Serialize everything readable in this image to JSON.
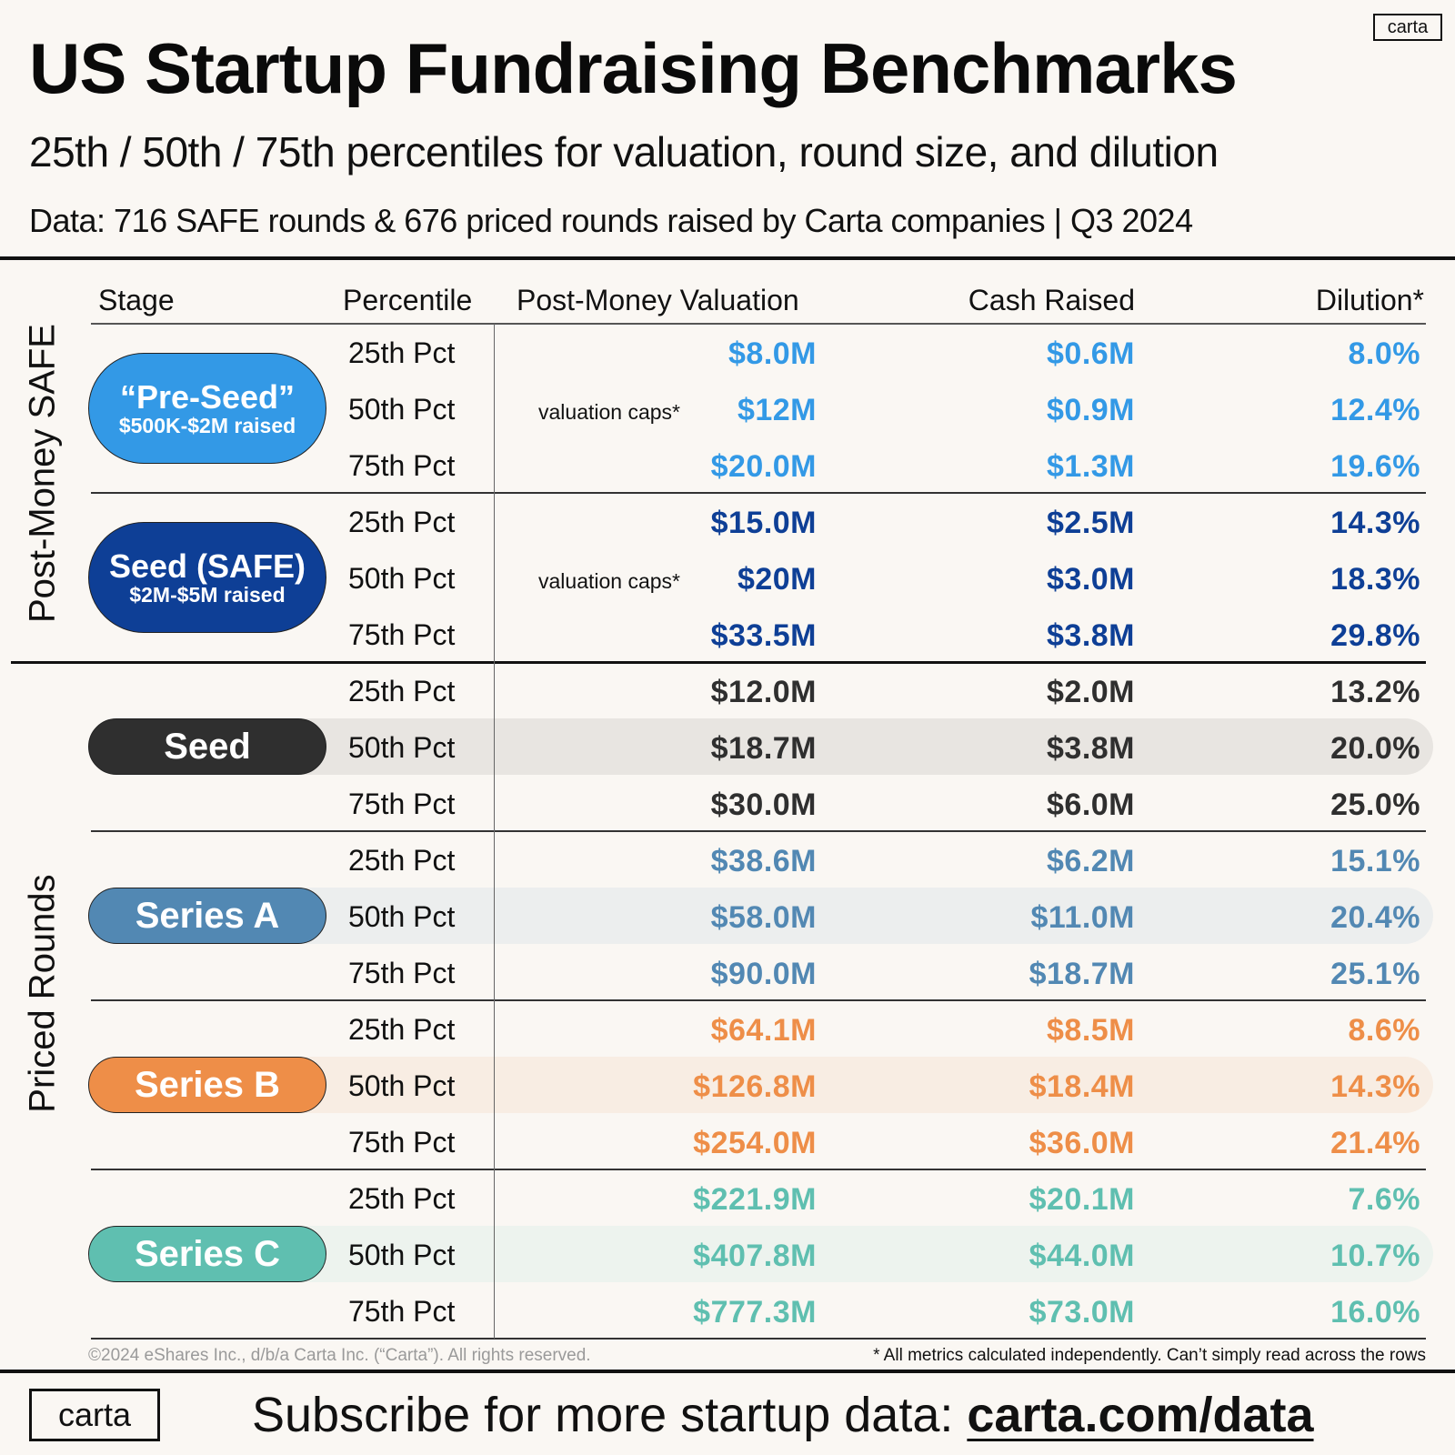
{
  "header": {
    "title": "US Startup Fundraising Benchmarks",
    "subtitle": "25th / 50th / 75th percentiles for valuation, round size, and dilution",
    "source": "Data: 716 SAFE rounds & 676 priced rounds raised by Carta companies | Q3 2024",
    "logo": "carta"
  },
  "columns": {
    "stage": "Stage",
    "percentile": "Percentile",
    "valuation": "Post-Money Valuation",
    "cash": "Cash Raised",
    "dilution": "Dilution*"
  },
  "sections": {
    "safe": "Post-Money SAFE",
    "priced": "Priced Rounds"
  },
  "valuation_caps_note": "valuation caps*",
  "percentile_labels": [
    "25th Pct",
    "50th Pct",
    "75th Pct"
  ],
  "colors": {
    "pre_seed": "#3399e6",
    "seed_safe": "#0e3f96",
    "seed": "#2f2f2f",
    "series_a": "#5288b3",
    "series_b": "#ee8e48",
    "series_c": "#5fbfb0",
    "background": "#faf7f3"
  },
  "chart_data": {
    "type": "table",
    "title": "US Startup Fundraising Benchmarks",
    "columns": [
      "Stage",
      "Percentile",
      "Post-Money Valuation",
      "Cash Raised",
      "Dilution*"
    ],
    "stages": [
      {
        "section": "Post-Money SAFE",
        "name": "“Pre-Seed”",
        "sub": "$500K-$2M raised",
        "color_key": "pre_seed",
        "valuation_caps": true,
        "rows": [
          {
            "percentile": "25th Pct",
            "valuation": "$8.0M",
            "cash": "$0.6M",
            "dilution": "8.0%"
          },
          {
            "percentile": "50th Pct",
            "valuation": "$12M",
            "cash": "$0.9M",
            "dilution": "12.4%"
          },
          {
            "percentile": "75th Pct",
            "valuation": "$20.0M",
            "cash": "$1.3M",
            "dilution": "19.6%"
          }
        ]
      },
      {
        "section": "Post-Money SAFE",
        "name": "Seed (SAFE)",
        "sub": "$2M-$5M raised",
        "color_key": "seed_safe",
        "valuation_caps": true,
        "rows": [
          {
            "percentile": "25th Pct",
            "valuation": "$15.0M",
            "cash": "$2.5M",
            "dilution": "14.3%"
          },
          {
            "percentile": "50th Pct",
            "valuation": "$20M",
            "cash": "$3.0M",
            "dilution": "18.3%"
          },
          {
            "percentile": "75th Pct",
            "valuation": "$33.5M",
            "cash": "$3.8M",
            "dilution": "29.8%"
          }
        ]
      },
      {
        "section": "Priced Rounds",
        "name": "Seed",
        "sub": "",
        "color_key": "seed",
        "valuation_caps": false,
        "band": "#e8e5e1",
        "rows": [
          {
            "percentile": "25th Pct",
            "valuation": "$12.0M",
            "cash": "$2.0M",
            "dilution": "13.2%"
          },
          {
            "percentile": "50th Pct",
            "valuation": "$18.7M",
            "cash": "$3.8M",
            "dilution": "20.0%"
          },
          {
            "percentile": "75th Pct",
            "valuation": "$30.0M",
            "cash": "$6.0M",
            "dilution": "25.0%"
          }
        ]
      },
      {
        "section": "Priced Rounds",
        "name": "Series A",
        "sub": "",
        "color_key": "series_a",
        "valuation_caps": false,
        "band": "#eceeee",
        "rows": [
          {
            "percentile": "25th Pct",
            "valuation": "$38.6M",
            "cash": "$6.2M",
            "dilution": "15.1%"
          },
          {
            "percentile": "50th Pct",
            "valuation": "$58.0M",
            "cash": "$11.0M",
            "dilution": "20.4%"
          },
          {
            "percentile": "75th Pct",
            "valuation": "$90.0M",
            "cash": "$18.7M",
            "dilution": "25.1%"
          }
        ]
      },
      {
        "section": "Priced Rounds",
        "name": "Series B",
        "sub": "",
        "color_key": "series_b",
        "valuation_caps": false,
        "band": "#f8ede3",
        "rows": [
          {
            "percentile": "25th Pct",
            "valuation": "$64.1M",
            "cash": "$8.5M",
            "dilution": "8.6%"
          },
          {
            "percentile": "50th Pct",
            "valuation": "$126.8M",
            "cash": "$18.4M",
            "dilution": "14.3%"
          },
          {
            "percentile": "75th Pct",
            "valuation": "$254.0M",
            "cash": "$36.0M",
            "dilution": "21.4%"
          }
        ]
      },
      {
        "section": "Priced Rounds",
        "name": "Series C",
        "sub": "",
        "color_key": "series_c",
        "valuation_caps": false,
        "band": "#edf3ee",
        "rows": [
          {
            "percentile": "25th Pct",
            "valuation": "$221.9M",
            "cash": "$20.1M",
            "dilution": "7.6%"
          },
          {
            "percentile": "50th Pct",
            "valuation": "$407.8M",
            "cash": "$44.0M",
            "dilution": "10.7%"
          },
          {
            "percentile": "75th Pct",
            "valuation": "$777.3M",
            "cash": "$73.0M",
            "dilution": "16.0%"
          }
        ]
      }
    ]
  },
  "footer": {
    "copyright": "©2024 eShares Inc., d/b/a Carta Inc. (“Carta”). All rights reserved.",
    "footnote": "* All metrics calculated independently. Can’t simply read across the rows",
    "logo": "carta",
    "cta_text": "Subscribe for more startup data: ",
    "cta_link": "carta.com/data"
  }
}
